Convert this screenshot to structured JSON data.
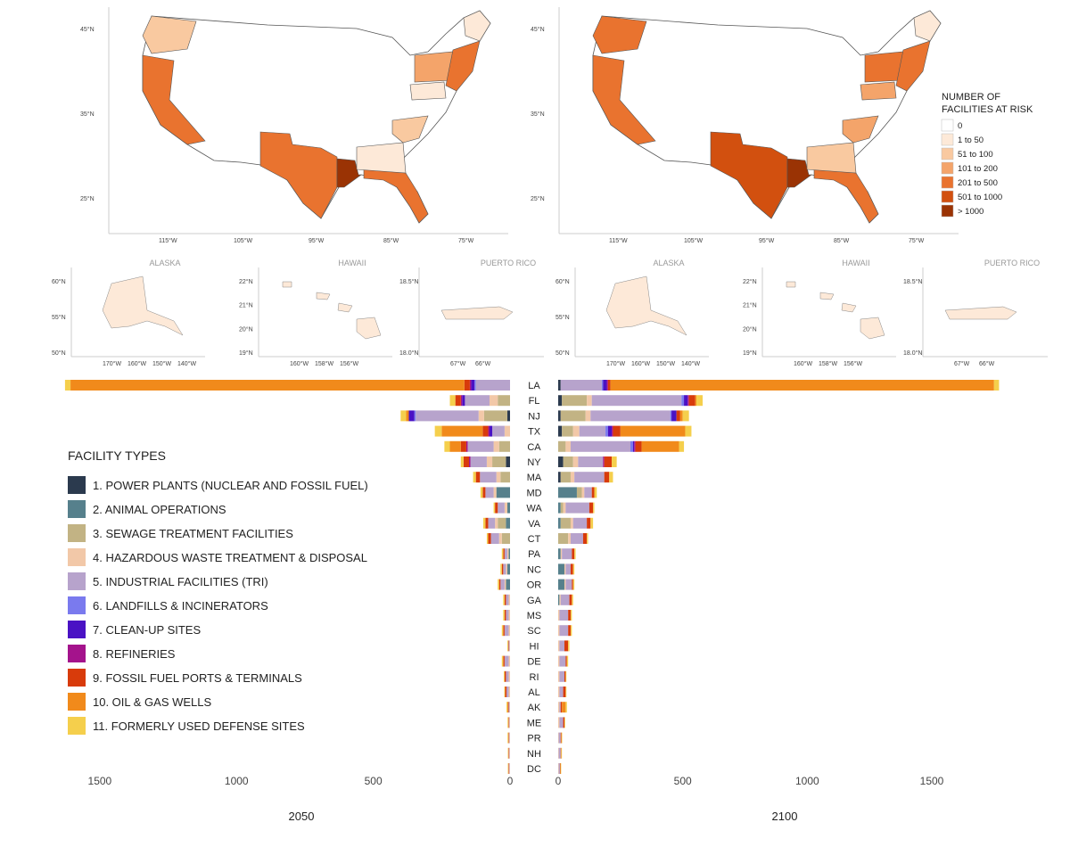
{
  "maps": {
    "lat_ticks": [
      "45°N",
      "35°N",
      "25°N"
    ],
    "lon_ticks": [
      "115°W",
      "105°W",
      "95°W",
      "85°W",
      "75°W"
    ],
    "insets": [
      {
        "title": "ALASKA",
        "lat_ticks": [
          "60°N",
          "55°N",
          "50°N"
        ],
        "lon_ticks": [
          "170°W",
          "160°W",
          "150°W",
          "140°W"
        ]
      },
      {
        "title": "HAWAII",
        "lat_ticks": [
          "22°N",
          "21°N",
          "20°N",
          "19°N"
        ],
        "lon_ticks": [
          "160°W",
          "158°W",
          "156°W"
        ]
      },
      {
        "title": "PUERTO RICO",
        "lat_ticks": [
          "18.5°N",
          "18.0°N"
        ],
        "lon_ticks": [
          "67°W",
          "66°W"
        ]
      }
    ]
  },
  "risk_legend": {
    "title_line1": "NUMBER OF",
    "title_line2": "FACILITIES AT RISK",
    "items": [
      {
        "label": "0",
        "color": "#ffffff"
      },
      {
        "label": "1 to 50",
        "color": "#fde9d8"
      },
      {
        "label": "51 to 100",
        "color": "#f9c9a0"
      },
      {
        "label": "101 to 200",
        "color": "#f4a46a"
      },
      {
        "label": "201 to 500",
        "color": "#e9732f"
      },
      {
        "label": "501 to 1000",
        "color": "#d2500f"
      },
      {
        "label": "> 1000",
        "color": "#9a3304"
      }
    ]
  },
  "facility_legend": {
    "title": "FACILITY TYPES",
    "items": [
      {
        "label": "1. POWER PLANTS (NUCLEAR AND FOSSIL FUEL)",
        "color": "#2b3a4e"
      },
      {
        "label": "2. ANIMAL OPERATIONS",
        "color": "#56808c"
      },
      {
        "label": "3. SEWAGE TREATMENT FACILITIES",
        "color": "#c2b384"
      },
      {
        "label": "4. HAZARDOUS WASTE TREATMENT & DISPOSAL",
        "color": "#f2c8a8"
      },
      {
        "label": "5. INDUSTRIAL FACILITIES (TRI)",
        "color": "#b7a3cc"
      },
      {
        "label": "6. LANDFILLS & INCINERATORS",
        "color": "#7a7aee"
      },
      {
        "label": "7. CLEAN-UP SITES",
        "color": "#4a12c4"
      },
      {
        "label": "8. REFINERIES",
        "color": "#a4138c"
      },
      {
        "label": "9. FOSSIL FUEL PORTS & TERMINALS",
        "color": "#d83b0b"
      },
      {
        "label": "10. OIL & GAS WELLS",
        "color": "#f18a1b"
      },
      {
        "label": "11. FORMERLY USED DEFENSE SITES",
        "color": "#f5cf4c"
      }
    ]
  },
  "chart_data": {
    "type": "bar",
    "orientation": "horizontal",
    "stacked": true,
    "categories": [
      "LA",
      "FL",
      "NJ",
      "TX",
      "CA",
      "NY",
      "MA",
      "MD",
      "WA",
      "VA",
      "CT",
      "PA",
      "NC",
      "OR",
      "GA",
      "MS",
      "SC",
      "HI",
      "DE",
      "RI",
      "AL",
      "AK",
      "ME",
      "PR",
      "NH",
      "DC"
    ],
    "panels": [
      {
        "label": "2050",
        "xticks": [
          1500,
          1000,
          500,
          0
        ],
        "xlim": [
          0,
          1630
        ],
        "direction": "left",
        "stacks": [
          [
            0,
            0,
            0,
            0,
            125,
            5,
            12,
            5,
            20,
            1440,
            20
          ],
          [
            0,
            0,
            45,
            30,
            90,
            0,
            10,
            5,
            20,
            0,
            20
          ],
          [
            10,
            0,
            85,
            20,
            230,
            5,
            20,
            0,
            0,
            10,
            20
          ],
          [
            0,
            0,
            0,
            20,
            45,
            0,
            10,
            5,
            20,
            150,
            25
          ],
          [
            0,
            0,
            40,
            20,
            95,
            0,
            0,
            5,
            20,
            40,
            20
          ],
          [
            15,
            0,
            50,
            20,
            60,
            0,
            0,
            5,
            20,
            0,
            10
          ],
          [
            0,
            0,
            35,
            15,
            60,
            0,
            0,
            0,
            15,
            0,
            10
          ],
          [
            0,
            50,
            0,
            10,
            30,
            0,
            0,
            0,
            10,
            0,
            8
          ],
          [
            0,
            10,
            0,
            10,
            25,
            0,
            0,
            0,
            10,
            0,
            5
          ],
          [
            0,
            15,
            30,
            10,
            25,
            0,
            0,
            0,
            10,
            0,
            8
          ],
          [
            0,
            0,
            30,
            10,
            30,
            0,
            0,
            0,
            10,
            0,
            5
          ],
          [
            0,
            5,
            0,
            5,
            10,
            0,
            0,
            0,
            5,
            0,
            5
          ],
          [
            0,
            10,
            0,
            5,
            10,
            0,
            0,
            0,
            5,
            0,
            5
          ],
          [
            0,
            15,
            0,
            5,
            15,
            0,
            0,
            0,
            5,
            0,
            5
          ],
          [
            0,
            0,
            0,
            5,
            10,
            0,
            0,
            0,
            5,
            0,
            5
          ],
          [
            0,
            0,
            0,
            5,
            10,
            0,
            0,
            0,
            5,
            0,
            5
          ],
          [
            0,
            0,
            0,
            5,
            15,
            0,
            0,
            0,
            5,
            0,
            5
          ],
          [
            0,
            0,
            0,
            2,
            3,
            0,
            0,
            0,
            2,
            0,
            3
          ],
          [
            0,
            0,
            0,
            5,
            15,
            0,
            0,
            0,
            5,
            0,
            5
          ],
          [
            0,
            0,
            0,
            5,
            10,
            0,
            0,
            0,
            5,
            0,
            3
          ],
          [
            0,
            0,
            0,
            5,
            8,
            0,
            0,
            0,
            5,
            0,
            3
          ],
          [
            0,
            0,
            0,
            2,
            3,
            0,
            0,
            0,
            2,
            3,
            3
          ],
          [
            0,
            0,
            0,
            2,
            2,
            0,
            0,
            0,
            2,
            0,
            3
          ],
          [
            0,
            0,
            0,
            2,
            2,
            0,
            0,
            0,
            2,
            0,
            3
          ],
          [
            0,
            0,
            0,
            2,
            2,
            0,
            0,
            0,
            2,
            0,
            2
          ],
          [
            0,
            0,
            0,
            2,
            2,
            0,
            0,
            0,
            2,
            0,
            2
          ]
        ]
      },
      {
        "label": "2100",
        "xticks": [
          0,
          500,
          1000,
          1500
        ],
        "xlim": [
          0,
          1790
        ],
        "direction": "right",
        "stacks": [
          [
            10,
            0,
            0,
            0,
            165,
            5,
            15,
            5,
            10,
            1540,
            20
          ],
          [
            15,
            0,
            100,
            20,
            360,
            10,
            15,
            5,
            25,
            5,
            25
          ],
          [
            10,
            0,
            100,
            20,
            320,
            5,
            20,
            0,
            15,
            10,
            25
          ],
          [
            15,
            0,
            45,
            25,
            105,
            10,
            15,
            5,
            30,
            260,
            25
          ],
          [
            0,
            0,
            30,
            20,
            240,
            10,
            5,
            5,
            25,
            150,
            20
          ],
          [
            20,
            0,
            40,
            20,
            100,
            0,
            0,
            5,
            30,
            0,
            20
          ],
          [
            10,
            0,
            40,
            15,
            120,
            0,
            0,
            0,
            20,
            0,
            15
          ],
          [
            0,
            75,
            20,
            10,
            30,
            0,
            0,
            0,
            10,
            0,
            10
          ],
          [
            0,
            10,
            10,
            10,
            95,
            0,
            0,
            0,
            15,
            0,
            5
          ],
          [
            0,
            10,
            40,
            10,
            55,
            0,
            0,
            0,
            15,
            0,
            10
          ],
          [
            0,
            0,
            40,
            10,
            50,
            0,
            0,
            0,
            15,
            0,
            5
          ],
          [
            0,
            10,
            0,
            5,
            40,
            0,
            0,
            0,
            10,
            0,
            5
          ],
          [
            0,
            25,
            0,
            5,
            20,
            0,
            0,
            0,
            10,
            0,
            5
          ],
          [
            0,
            25,
            0,
            5,
            25,
            0,
            0,
            0,
            5,
            0,
            5
          ],
          [
            0,
            5,
            0,
            5,
            35,
            0,
            0,
            0,
            10,
            0,
            5
          ],
          [
            0,
            0,
            0,
            5,
            35,
            0,
            0,
            0,
            10,
            0,
            5
          ],
          [
            0,
            0,
            0,
            5,
            35,
            0,
            0,
            0,
            10,
            0,
            5
          ],
          [
            0,
            0,
            0,
            5,
            20,
            0,
            0,
            0,
            15,
            0,
            5
          ],
          [
            0,
            0,
            0,
            5,
            25,
            0,
            0,
            0,
            5,
            0,
            5
          ],
          [
            0,
            0,
            0,
            5,
            20,
            0,
            0,
            0,
            5,
            0,
            3
          ],
          [
            0,
            0,
            0,
            5,
            15,
            0,
            0,
            0,
            10,
            0,
            3
          ],
          [
            0,
            0,
            0,
            5,
            5,
            0,
            0,
            0,
            5,
            15,
            5
          ],
          [
            0,
            0,
            0,
            5,
            15,
            0,
            0,
            0,
            5,
            0,
            3
          ],
          [
            0,
            0,
            0,
            2,
            8,
            0,
            0,
            0,
            3,
            0,
            3
          ],
          [
            0,
            0,
            0,
            2,
            8,
            0,
            0,
            0,
            2,
            0,
            3
          ],
          [
            0,
            0,
            0,
            2,
            5,
            0,
            0,
            0,
            2,
            0,
            3
          ]
        ]
      }
    ]
  }
}
